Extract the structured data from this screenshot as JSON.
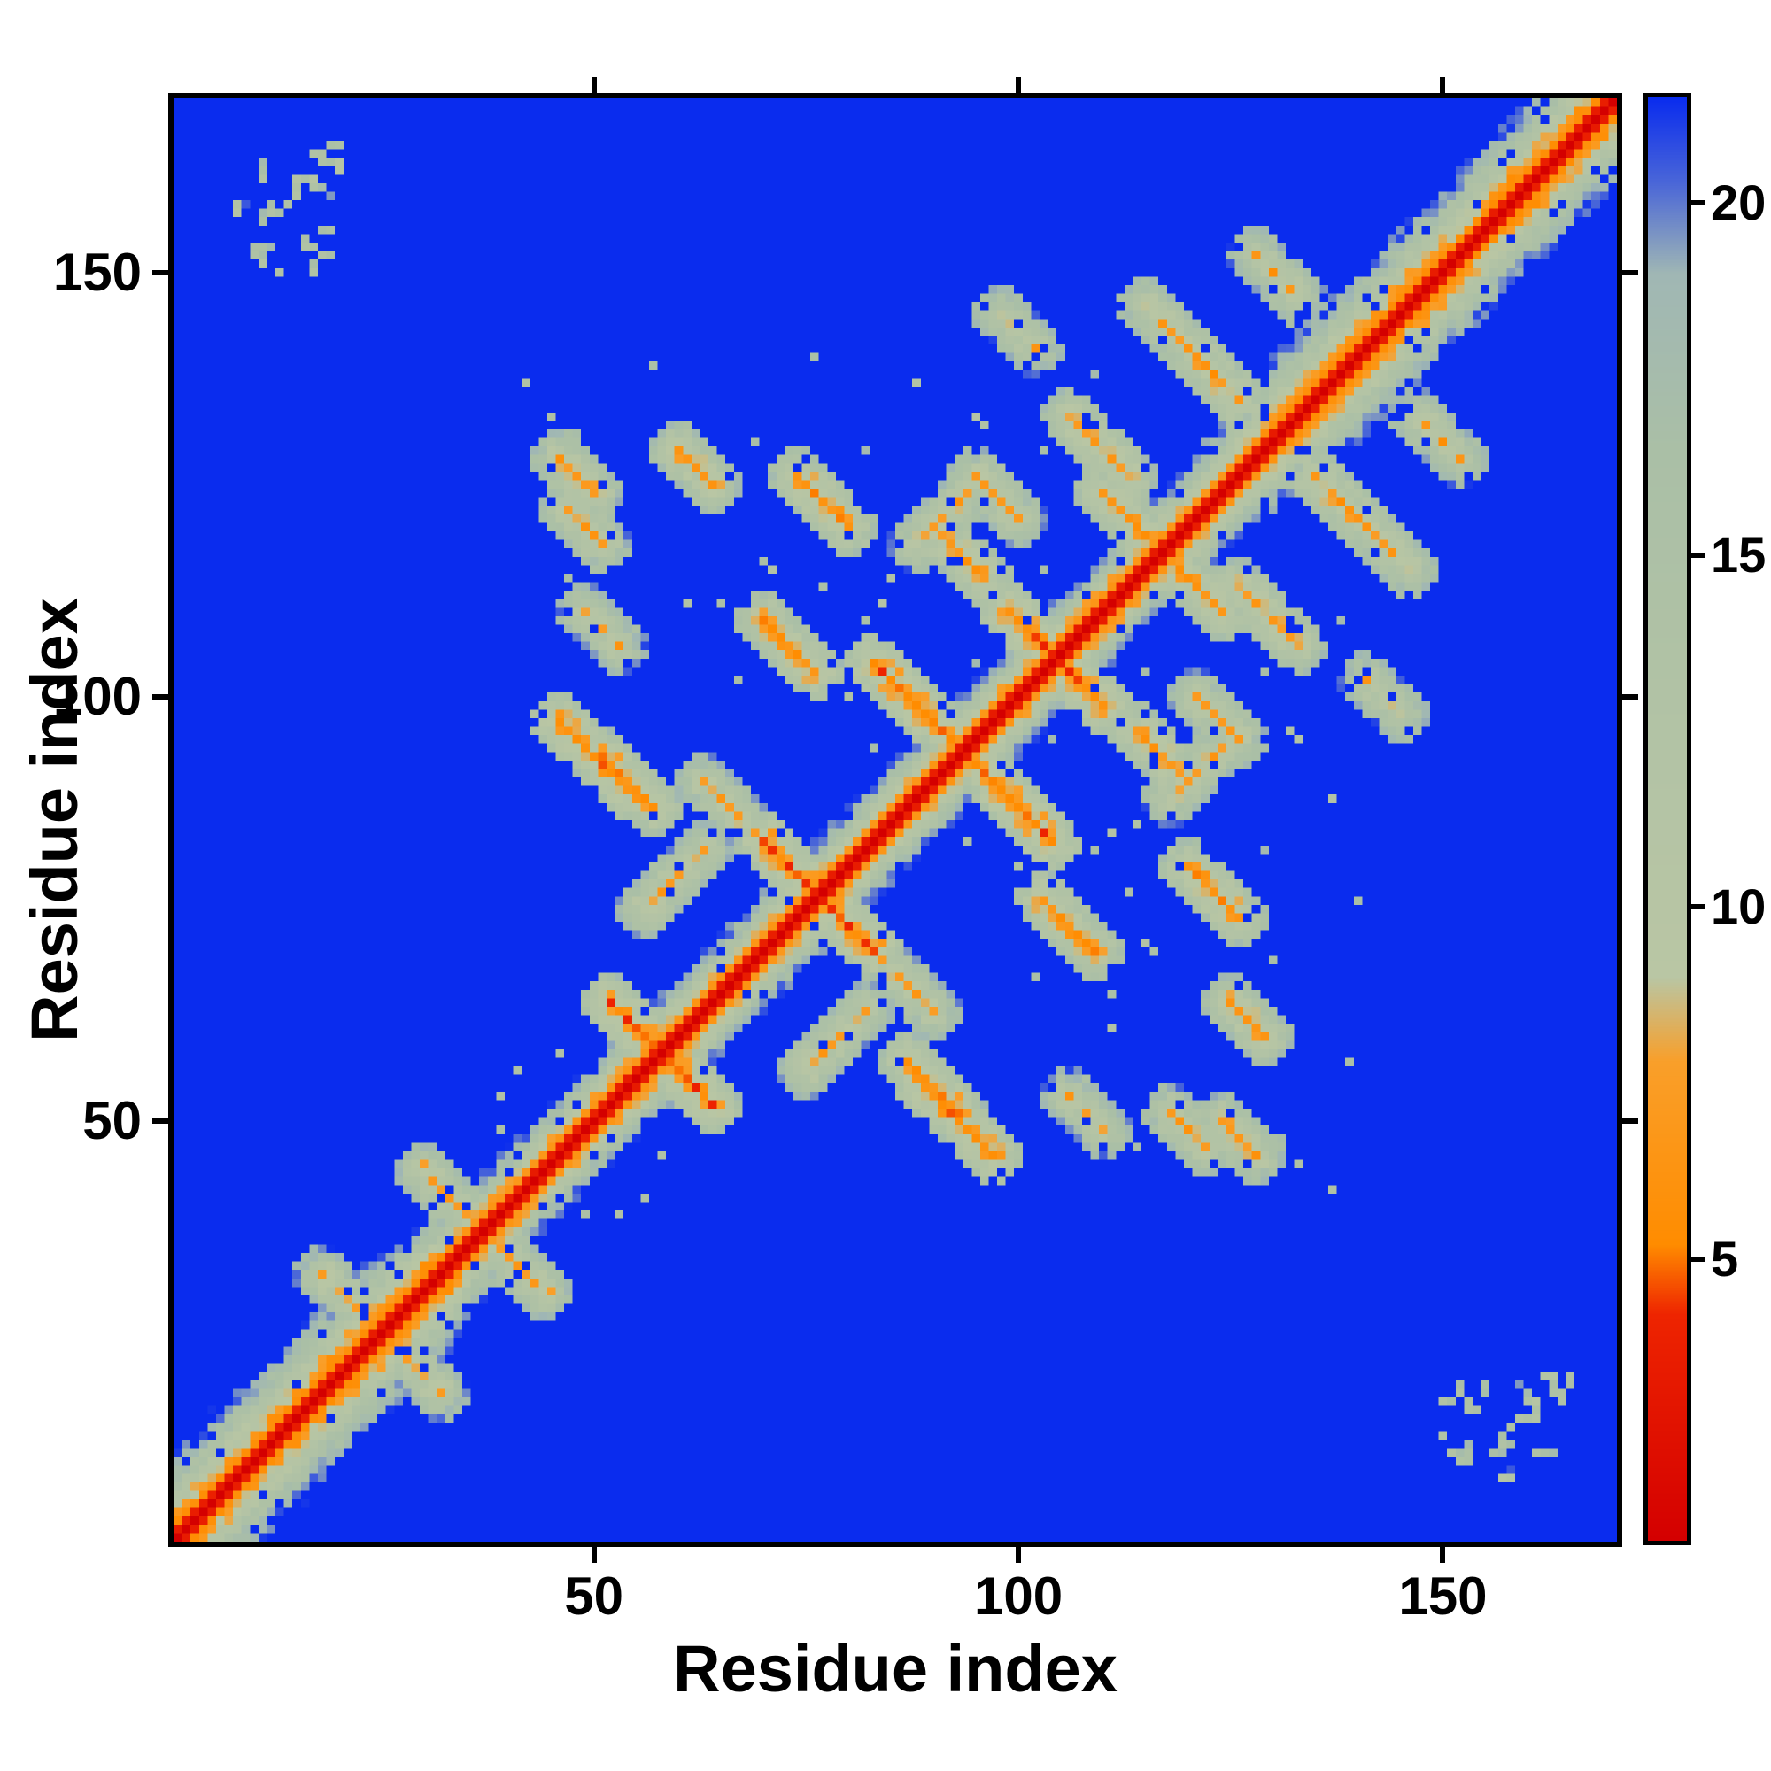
{
  "figure": {
    "background_color": "#ffffff"
  },
  "chart_data": {
    "type": "heatmap",
    "title": "",
    "xlabel": "Residue index",
    "ylabel": "Residue index",
    "x_ticks": [
      50,
      100,
      150
    ],
    "y_ticks": [
      50,
      100,
      150
    ],
    "axis_range": [
      1,
      170
    ],
    "n_residues": 170,
    "legend": "none",
    "grid": false,
    "colorbar": {
      "position": "right",
      "orientation": "vertical",
      "ticks": [
        5,
        10,
        15,
        20
      ],
      "vmin": 1,
      "vmax": 21.5
    },
    "colormap": {
      "description": "small values red, then orange, then pale sage-green, large values saturated blue (background)",
      "stops": [
        [
          1.0,
          "#d40000"
        ],
        [
          4.2,
          "#ee2400"
        ],
        [
          5.2,
          "#ff8c00"
        ],
        [
          7.8,
          "#f99f2a"
        ],
        [
          9.0,
          "#b9c6a4"
        ],
        [
          16.5,
          "#aabfa6"
        ],
        [
          19.0,
          "#a0b7b4"
        ],
        [
          20.3,
          "#4a66d8"
        ],
        [
          21.5,
          "#0a2cee"
        ]
      ],
      "background_value": 25
    },
    "matrix_model": {
      "comment": "symmetric residue-residue distance map: red main diagonal with orange/sage band, off-diagonal antiparallel contact streaks, speckled sage clusters, blue background",
      "seed": 1337,
      "diagonal_value": 0.8,
      "chain_step": 3.6,
      "band_slope_wide": 2.0,
      "band_slope_narrow": 3.0,
      "wide_band_zones": [
        [
          1,
          34
        ],
        [
          130,
          170
        ]
      ],
      "contacts": [
        {
          "i": 46,
          "j": 97,
          "len": 9,
          "dir": "anti",
          "d": 5.5
        },
        {
          "i": 51,
          "j": 93,
          "len": 7,
          "dir": "anti",
          "d": 6.0
        },
        {
          "i": 52,
          "j": 64,
          "len": 9,
          "dir": "anti",
          "d": 5.0
        },
        {
          "i": 70,
          "j": 83,
          "len": 9,
          "dir": "anti",
          "d": 5.0
        },
        {
          "i": 83,
          "j": 104,
          "len": 12,
          "dir": "anti",
          "d": 5.0
        },
        {
          "i": 99,
          "j": 110,
          "len": 9,
          "dir": "anti",
          "d": 5.0
        },
        {
          "i": 70,
          "j": 109,
          "len": 7,
          "dir": "anti",
          "d": 6.0
        },
        {
          "i": 74,
          "j": 126,
          "len": 7,
          "dir": "anti",
          "d": 6.0
        },
        {
          "i": 90,
          "j": 120,
          "len": 7,
          "dir": "anti",
          "d": 6.5
        },
        {
          "i": 46,
          "j": 128,
          "len": 5,
          "dir": "anti",
          "d": 7.0
        },
        {
          "i": 60,
          "j": 129,
          "len": 5,
          "dir": "anti",
          "d": 7.0
        },
        {
          "i": 47,
          "j": 122,
          "len": 5,
          "dir": "anti",
          "d": 7.5
        },
        {
          "i": 106,
          "j": 133,
          "len": 8,
          "dir": "anti",
          "d": 7.0
        },
        {
          "i": 115,
          "j": 146,
          "len": 7,
          "dir": "anti",
          "d": 8.0
        },
        {
          "i": 121,
          "j": 140,
          "len": 6,
          "dir": "anti",
          "d": 7.0
        },
        {
          "i": 30,
          "j": 44,
          "len": 6,
          "dir": "anti",
          "d": 7.5
        },
        {
          "i": 18,
          "j": 32,
          "len": 6,
          "dir": "anti",
          "d": 8.5
        },
        {
          "i": 98,
          "j": 145,
          "len": 5,
          "dir": "anti",
          "d": 9.0
        },
        {
          "i": 128,
          "j": 152,
          "len": 6,
          "dir": "anti",
          "d": 8.5
        },
        {
          "i": 56,
          "j": 75,
          "len": 8,
          "dir": "par",
          "d": 8.0
        },
        {
          "i": 88,
          "j": 118,
          "len": 8,
          "dir": "par",
          "d": 8.5
        },
        {
          "i": 49,
          "j": 110,
          "len": 5,
          "dir": "anti",
          "d": 8.5
        },
        {
          "i": 63,
          "j": 90,
          "len": 6,
          "dir": "anti",
          "d": 8.0
        },
        {
          "i": 95,
          "j": 126,
          "len": 6,
          "dir": "anti",
          "d": 8.0
        },
        {
          "i": 110,
          "j": 124,
          "len": 7,
          "dir": "anti",
          "d": 6.5
        }
      ],
      "corner_clusters": [
        {
          "i_range": [
            6,
            20
          ],
          "j_range": [
            150,
            166
          ],
          "count": 26,
          "d_range": [
            11,
            17
          ]
        }
      ],
      "speckle": {
        "zone": [
          38,
          140
        ],
        "min_sep": 8,
        "prob": 0.012,
        "d_range": [
          12.5,
          18
        ]
      },
      "mottle": {
        "amplitude": 4.5,
        "hole_prob": 0.055
      }
    }
  }
}
